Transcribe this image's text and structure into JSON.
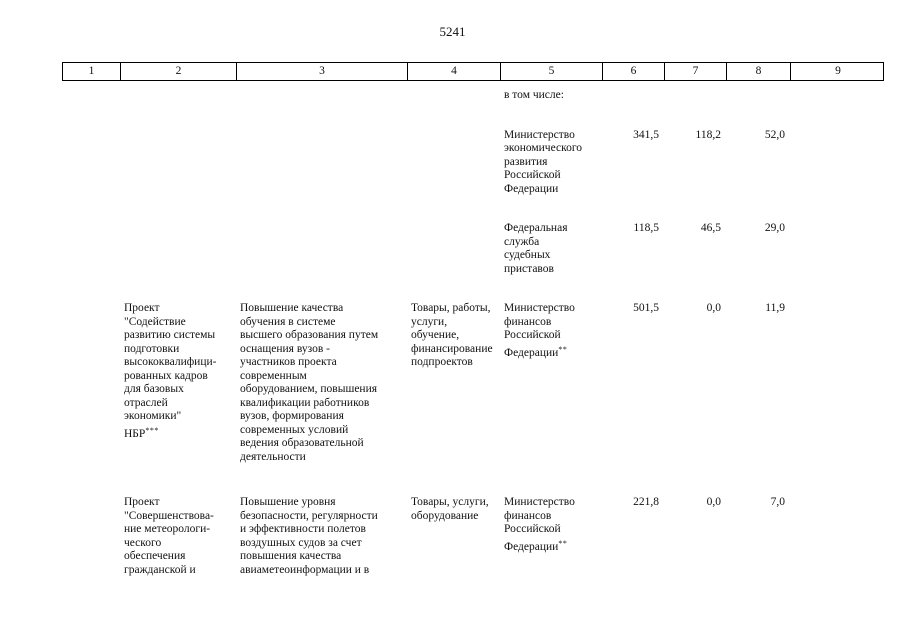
{
  "page": {
    "number": "5241"
  },
  "table": {
    "header": [
      "1",
      "2",
      "3",
      "4",
      "5",
      "6",
      "7",
      "8",
      "9"
    ],
    "rows": [
      {
        "c5": "в том числе:"
      },
      {
        "c5": "Министерство\nэкономического\nразвития\nРоссийской\nФедерации",
        "c6": "341,5",
        "c7": "118,2",
        "c8": "52,0"
      },
      {
        "c5": "Федеральная\nслужба\nсудебных\nприставов",
        "c6": "118,5",
        "c7": "46,5",
        "c8": "29,0"
      },
      {
        "c2": "Проект\n\"Содействие\nразвитию системы\nподготовки\nвысококвалифици-\nрованных кадров\nдля базовых\nотраслей\nэкономики\"\nНБР",
        "c2_sup": "***",
        "c3": "Повышение качества\nобучения в системе\nвысшего образования путем\nоснащения вузов -\nучастников проекта\nсовременным\nоборудованием, повышения\nквалификации работников\nвузов, формирования\nсовременных условий\nведения образовательной\nдеятельности",
        "c4": "Товары, работы,\nуслуги,\nобучение,\nфинансирование\nподпроектов",
        "c5": "Министерство\nфинансов\nРоссийской\nФедерации",
        "c5_sup": "**",
        "c6": "501,5",
        "c7": "0,0",
        "c8": "11,9"
      },
      {
        "c2": "Проект\n\"Совершенствова-\nние метеорологи-\nческого\nобеспечения\nгражданской и",
        "c3": "Повышение уровня\nбезопасности, регулярности\nи эффективности полетов\nвоздушных судов за счет\nповышения качества\nавиаметеоинформации и в",
        "c4": "Товары, услуги,\nоборудование",
        "c5": "Министерство\nфинансов\nРоссийской\nФедерации",
        "c5_sup": "**",
        "c6": "221,8",
        "c7": "0,0",
        "c8": "7,0"
      }
    ]
  }
}
